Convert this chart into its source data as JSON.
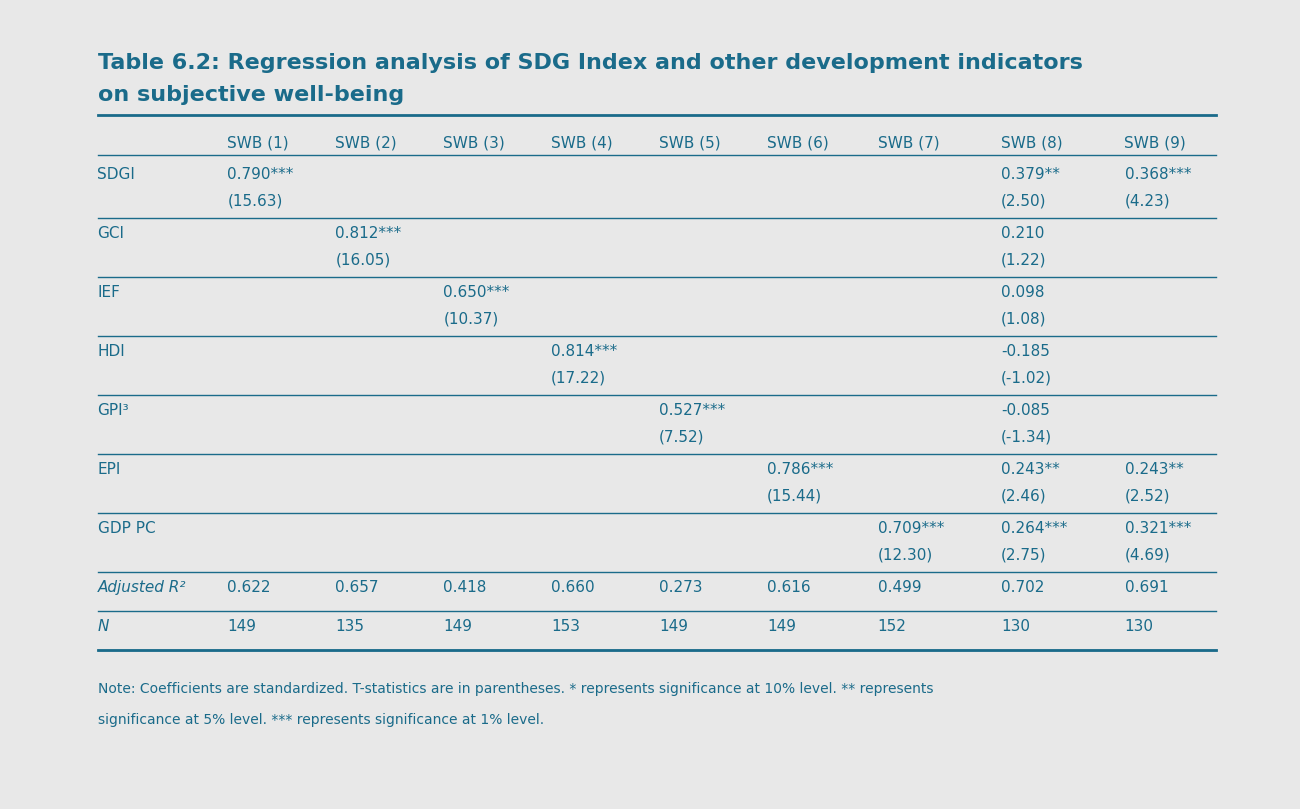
{
  "title_line1": "Table 6.2: Regression analysis of SDG Index and other development indicators",
  "title_line2": "on subjective well-being",
  "title_color": "#1a6b8a",
  "background_color": "#e8e8e8",
  "header_color": "#1a6b8a",
  "body_color": "#1a6b8a",
  "line_color": "#1a6b8a",
  "columns": [
    "",
    "SWB (1)",
    "SWB (2)",
    "SWB (3)",
    "SWB (4)",
    "SWB (5)",
    "SWB (6)",
    "SWB (7)",
    "SWB (8)",
    "SWB (9)"
  ],
  "rows": [
    {
      "label": "SDGI",
      "coeff": [
        "0.790***",
        "",
        "",
        "",
        "",
        "",
        "",
        "0.379**",
        "0.368***"
      ],
      "tstat": [
        "(15.63)",
        "",
        "",
        "",
        "",
        "",
        "",
        "(2.50)",
        "(4.23)"
      ],
      "two_line": true
    },
    {
      "label": "GCI",
      "coeff": [
        "",
        "0.812***",
        "",
        "",
        "",
        "",
        "",
        "0.210",
        ""
      ],
      "tstat": [
        "",
        "(16.05)",
        "",
        "",
        "",
        "",
        "",
        "(1.22)",
        ""
      ],
      "two_line": true
    },
    {
      "label": "IEF",
      "coeff": [
        "",
        "",
        "0.650***",
        "",
        "",
        "",
        "",
        "0.098",
        ""
      ],
      "tstat": [
        "",
        "",
        "(10.37)",
        "",
        "",
        "",
        "",
        "(1.08)",
        ""
      ],
      "two_line": true
    },
    {
      "label": "HDI",
      "coeff": [
        "",
        "",
        "",
        "0.814***",
        "",
        "",
        "",
        "-0.185",
        ""
      ],
      "tstat": [
        "",
        "",
        "",
        "(17.22)",
        "",
        "",
        "",
        "(-1.02)",
        ""
      ],
      "two_line": true
    },
    {
      "label": "GPI³",
      "coeff": [
        "",
        "",
        "",
        "",
        "0.527***",
        "",
        "",
        "-0.085",
        ""
      ],
      "tstat": [
        "",
        "",
        "",
        "",
        "(7.52)",
        "",
        "",
        "(-1.34)",
        ""
      ],
      "two_line": true
    },
    {
      "label": "EPI",
      "coeff": [
        "",
        "",
        "",
        "",
        "",
        "0.786***",
        "",
        "0.243**",
        "0.243**"
      ],
      "tstat": [
        "",
        "",
        "",
        "",
        "",
        "(15.44)",
        "",
        "(2.46)",
        "(2.52)"
      ],
      "two_line": true
    },
    {
      "label": "GDP PC",
      "coeff": [
        "",
        "",
        "",
        "",
        "",
        "",
        "0.709***",
        "0.264***",
        "0.321***"
      ],
      "tstat": [
        "",
        "",
        "",
        "",
        "",
        "",
        "(12.30)",
        "(2.75)",
        "(4.69)"
      ],
      "two_line": true
    },
    {
      "label": "Adjusted R²",
      "coeff": [
        "0.622",
        "0.657",
        "0.418",
        "0.660",
        "0.273",
        "0.616",
        "0.499",
        "0.702",
        "0.691"
      ],
      "tstat": [
        "",
        "",
        "",
        "",
        "",
        "",
        "",
        "",
        ""
      ],
      "two_line": false
    },
    {
      "label": "N",
      "coeff": [
        "149",
        "135",
        "149",
        "153",
        "149",
        "149",
        "152",
        "130",
        "130"
      ],
      "tstat": [
        "",
        "",
        "",
        "",
        "",
        "",
        "",
        "",
        ""
      ],
      "two_line": false
    }
  ],
  "note_line1": "Note: Coefficients are standardized. T-statistics are in parentheses. * represents significance at 10% level. ** represents",
  "note_line2": "significance at 5% level. *** represents significance at 1% level.",
  "title_fontsize": 16,
  "header_fontsize": 11,
  "body_fontsize": 11,
  "note_fontsize": 10
}
